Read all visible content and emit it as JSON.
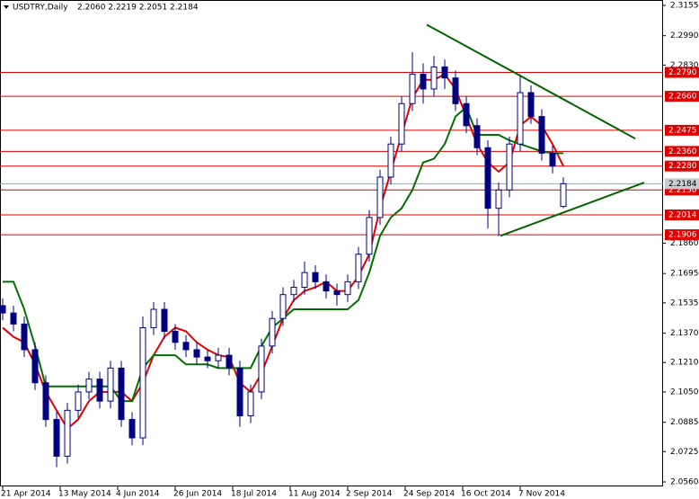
{
  "chart_data": {
    "type": "candlestick",
    "title": "USDTRY,Daily",
    "header_quote": "2.2060 2.2219 2.2051 2.2184",
    "x": [
      0,
      3,
      6,
      9,
      12,
      15,
      18,
      21,
      24,
      27,
      30,
      33,
      36,
      39,
      42,
      45,
      48,
      51,
      54,
      57,
      60,
      63,
      66,
      69,
      72,
      75,
      78,
      81,
      84,
      87,
      90,
      93,
      96,
      99,
      102,
      105,
      108,
      111,
      114,
      117,
      120,
      123,
      126,
      129,
      132,
      135,
      138,
      141,
      144,
      147,
      150,
      153,
      156
    ],
    "ohlc": [
      [
        2.152,
        2.156,
        2.144,
        2.148
      ],
      [
        2.148,
        2.152,
        2.138,
        2.142
      ],
      [
        2.142,
        2.146,
        2.124,
        2.128
      ],
      [
        2.128,
        2.132,
        2.106,
        2.11
      ],
      [
        2.11,
        2.114,
        2.086,
        2.09
      ],
      [
        2.09,
        2.094,
        2.064,
        2.07
      ],
      [
        2.07,
        2.099,
        2.066,
        2.095
      ],
      [
        2.095,
        2.109,
        2.091,
        2.105
      ],
      [
        2.105,
        2.116,
        2.101,
        2.112
      ],
      [
        2.112,
        2.116,
        2.096,
        2.1
      ],
      [
        2.1,
        2.122,
        2.096,
        2.118
      ],
      [
        2.118,
        2.122,
        2.086,
        2.09
      ],
      [
        2.09,
        2.094,
        2.076,
        2.08
      ],
      [
        2.08,
        2.146,
        2.076,
        2.14
      ],
      [
        2.14,
        2.154,
        2.136,
        2.15
      ],
      [
        2.15,
        2.154,
        2.134,
        2.138
      ],
      [
        2.138,
        2.142,
        2.128,
        2.132
      ],
      [
        2.132,
        2.136,
        2.124,
        2.128
      ],
      [
        2.128,
        2.132,
        2.12,
        2.124
      ],
      [
        2.124,
        2.128,
        2.118,
        2.122
      ],
      [
        2.122,
        2.129,
        2.118,
        2.125
      ],
      [
        2.125,
        2.129,
        2.114,
        2.118
      ],
      [
        2.118,
        2.122,
        2.086,
        2.092
      ],
      [
        2.092,
        2.109,
        2.088,
        2.105
      ],
      [
        2.105,
        2.134,
        2.101,
        2.13
      ],
      [
        2.13,
        2.149,
        2.126,
        2.145
      ],
      [
        2.145,
        2.162,
        2.141,
        2.158
      ],
      [
        2.158,
        2.166,
        2.154,
        2.162
      ],
      [
        2.162,
        2.176,
        2.158,
        2.17
      ],
      [
        2.17,
        2.174,
        2.161,
        2.165
      ],
      [
        2.165,
        2.169,
        2.156,
        2.16
      ],
      [
        2.16,
        2.164,
        2.152,
        2.158
      ],
      [
        2.158,
        2.169,
        2.154,
        2.165
      ],
      [
        2.165,
        2.184,
        2.161,
        2.18
      ],
      [
        2.18,
        2.204,
        2.176,
        2.2
      ],
      [
        2.2,
        2.226,
        2.196,
        2.222
      ],
      [
        2.222,
        2.244,
        2.218,
        2.24
      ],
      [
        2.24,
        2.266,
        2.236,
        2.262
      ],
      [
        2.262,
        2.29,
        2.258,
        2.278
      ],
      [
        2.278,
        2.284,
        2.262,
        2.27
      ],
      [
        2.27,
        2.288,
        2.266,
        2.282
      ],
      [
        2.282,
        2.286,
        2.27,
        2.276
      ],
      [
        2.276,
        2.28,
        2.258,
        2.262
      ],
      [
        2.262,
        2.266,
        2.246,
        2.25
      ],
      [
        2.25,
        2.254,
        2.234,
        2.238
      ],
      [
        2.238,
        2.242,
        2.194,
        2.205
      ],
      [
        2.205,
        2.219,
        2.19,
        2.215
      ],
      [
        2.215,
        2.244,
        2.211,
        2.24
      ],
      [
        2.24,
        2.278,
        2.236,
        2.268
      ],
      [
        2.268,
        2.272,
        2.251,
        2.255
      ],
      [
        2.255,
        2.259,
        2.231,
        2.235
      ],
      [
        2.235,
        2.239,
        2.224,
        2.228
      ],
      [
        2.206,
        2.2219,
        2.2051,
        2.2184
      ]
    ],
    "candle_color": "#000080",
    "series": [
      {
        "color": "#e00000",
        "values": [
          2.14,
          2.135,
          2.132,
          2.12,
          2.105,
          2.095,
          2.085,
          2.09,
          2.1,
          2.105,
          2.105,
          2.105,
          2.1,
          2.11,
          2.125,
          2.135,
          2.14,
          2.138,
          2.132,
          2.128,
          2.125,
          2.124,
          2.11,
          2.105,
          2.115,
          2.13,
          2.145,
          2.155,
          2.16,
          2.162,
          2.165,
          2.16,
          2.16,
          2.168,
          2.18,
          2.205,
          2.225,
          2.245,
          2.265,
          2.275,
          2.275,
          2.278,
          2.27,
          2.255,
          2.24,
          2.23,
          2.225,
          2.23,
          2.25,
          2.255,
          2.25,
          2.24,
          2.228
        ]
      },
      {
        "color": "#007000",
        "values": [
          2.165,
          2.165,
          2.15,
          2.13,
          2.108,
          2.108,
          2.108,
          2.108,
          2.108,
          2.108,
          2.108,
          2.1,
          2.1,
          2.118,
          2.125,
          2.125,
          2.125,
          2.12,
          2.12,
          2.12,
          2.118,
          2.118,
          2.118,
          2.118,
          2.13,
          2.14,
          2.145,
          2.15,
          2.15,
          2.15,
          2.15,
          2.15,
          2.15,
          2.155,
          2.17,
          2.19,
          2.2,
          2.205,
          2.215,
          2.23,
          2.232,
          2.24,
          2.255,
          2.26,
          2.245,
          2.245,
          2.245,
          2.242,
          2.24,
          2.238,
          2.236,
          2.235,
          2.235
        ]
      }
    ],
    "trendlines": [
      {
        "color": "#006400",
        "x": [
          118,
          176
        ],
        "y": [
          2.305,
          2.243
        ]
      },
      {
        "color": "#006400",
        "x": [
          138.5,
          178.5
        ],
        "y": [
          2.19,
          2.219
        ]
      }
    ],
    "levels": [
      {
        "value": 2.279,
        "label": "2.2790"
      },
      {
        "value": 2.266,
        "label": "2.2660"
      },
      {
        "value": 2.2475,
        "label": "2.2475"
      },
      {
        "value": 2.236,
        "label": "2.2360"
      },
      {
        "value": 2.228,
        "label": "2.2280"
      },
      {
        "value": 2.215,
        "label": "2.2150"
      },
      {
        "value": 2.2014,
        "label": "2.2014"
      },
      {
        "value": 2.1906,
        "label": "2.1906"
      }
    ],
    "level_color": "#e00000",
    "last_price": {
      "value": 2.2184,
      "label": "2.2184"
    },
    "xlim": [
      -0.75,
      183.75
    ],
    "ylim": [
      2.056,
      2.3155
    ],
    "yticks": [
      {
        "value": 2.3155,
        "label": "2.3155"
      },
      {
        "value": 2.299,
        "label": "2.2990"
      },
      {
        "value": 2.283,
        "label": "2.2830"
      },
      {
        "value": 2.186,
        "label": "2.1860"
      },
      {
        "value": 2.1695,
        "label": "2.1695"
      },
      {
        "value": 2.1535,
        "label": "2.1535"
      },
      {
        "value": 2.137,
        "label": "2.1370"
      },
      {
        "value": 2.121,
        "label": "2.1210"
      },
      {
        "value": 2.105,
        "label": "2.1050"
      },
      {
        "value": 2.0885,
        "label": "2.0885"
      },
      {
        "value": 2.0725,
        "label": "2.0725"
      },
      {
        "value": 2.056,
        "label": "2.0560"
      }
    ],
    "xticks": [
      {
        "value": 0,
        "label": "21 Apr 2014"
      },
      {
        "value": 16,
        "label": "13 May 2014"
      },
      {
        "value": 32,
        "label": "4 Jun 2014"
      },
      {
        "value": 48,
        "label": "26 Jun 2014"
      },
      {
        "value": 64,
        "label": "18 Jul 2014"
      },
      {
        "value": 80,
        "label": "11 Aug 2014"
      },
      {
        "value": 96,
        "label": "2 Sep 2014"
      },
      {
        "value": 112,
        "label": "24 Sep 2014"
      },
      {
        "value": 128,
        "label": "16 Oct 2014"
      },
      {
        "value": 144,
        "label": "7 Nov 2014"
      }
    ]
  }
}
